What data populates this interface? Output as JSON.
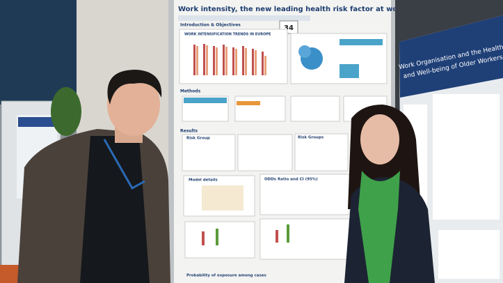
{
  "poster": {
    "title": "Work intensity, the new leading health risk factor at work",
    "board_number": "34",
    "sections": [
      "Introduction & Objectives",
      "Methods",
      "Results"
    ],
    "chart_title": "WORK INTENSIFICATION TRENDS IN EUROPE",
    "panels": [
      "Risk Group",
      "Risk Groups",
      "Model details",
      "ODDs Ratio and CI (95%)",
      "Probability of exposure among cases"
    ]
  },
  "right_poster": {
    "title_lines": [
      "Work Organisation and the Health",
      "and Well-being of Older Workers"
    ]
  }
}
